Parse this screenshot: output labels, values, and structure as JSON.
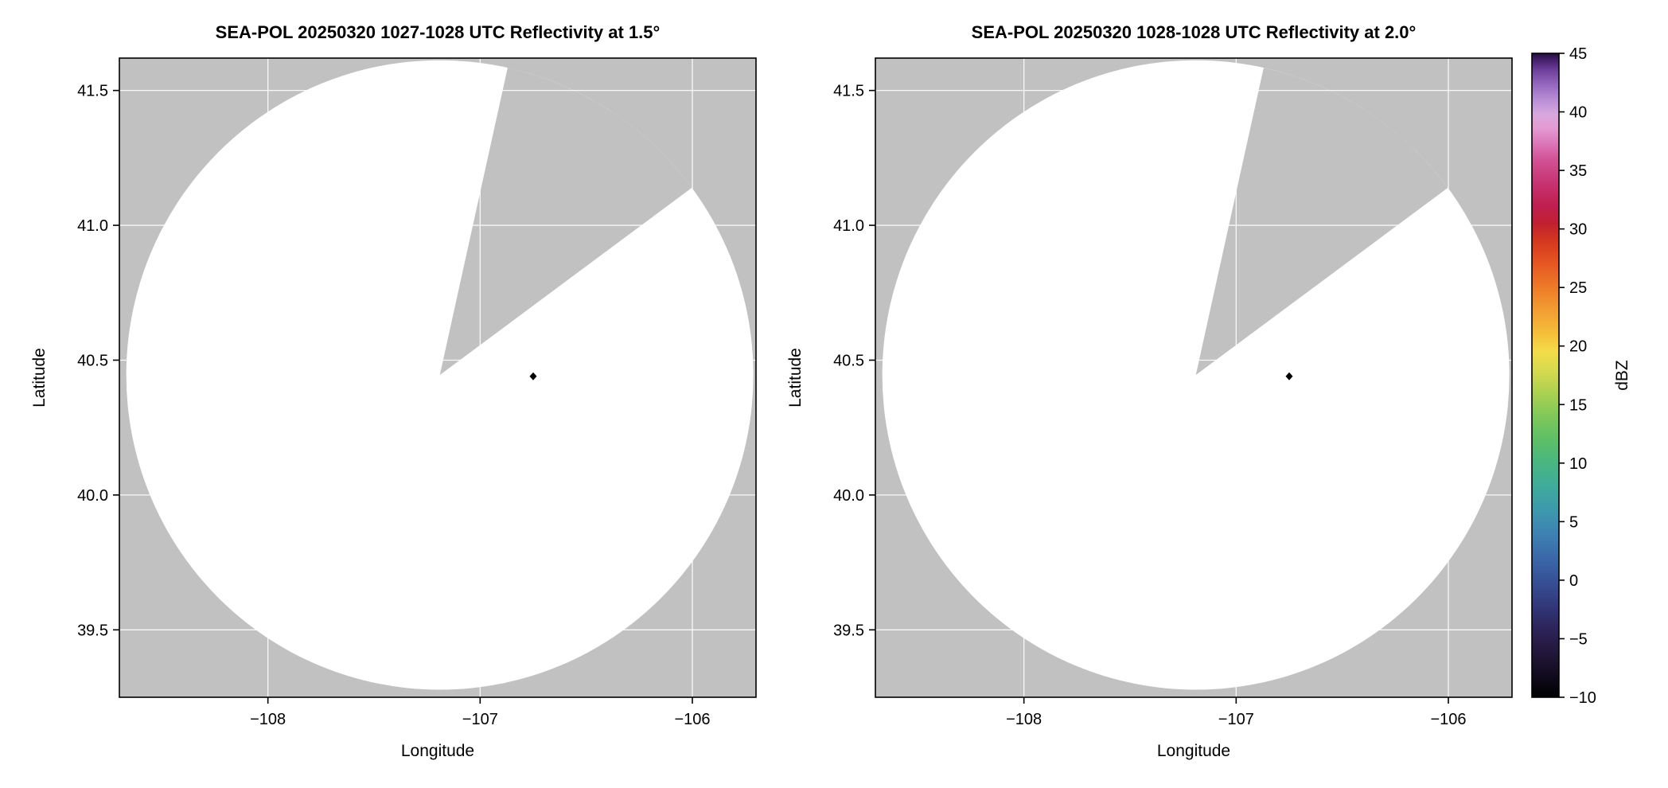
{
  "style": {
    "background": "#ffffff",
    "panel_bg": "#c1c1c1",
    "coverage_fill": "#ffffff",
    "grid_color": "#ffffff",
    "frame_color": "#000000",
    "text_color": "#000000",
    "echo_color": "#000000"
  },
  "chart_data": [
    {
      "type": "heatmap",
      "title": "SEA-POL 20250320 1027-1028 UTC Reflectivity at 1.5°",
      "xlabel": "Longitude",
      "ylabel": "Latitude",
      "xlim": [
        -108.7,
        -105.7
      ],
      "ylim": [
        39.25,
        41.62
      ],
      "xticks": [
        -108,
        -107,
        -106
      ],
      "xtick_labels": [
        "−108",
        "−107",
        "−106"
      ],
      "yticks": [
        39.5,
        40.0,
        40.5,
        41.0,
        41.5
      ],
      "ytick_labels": [
        "39.5",
        "40.0",
        "40.5",
        "41.0",
        "41.5"
      ],
      "grid": true,
      "radar": {
        "center_lon": -107.19,
        "center_lat": 40.445,
        "range_lon_deg": 1.4775,
        "range_lat_deg": 1.167
      },
      "missing_sector_azimuth_deg": [
        12.5,
        53.5
      ],
      "echoes": [
        {
          "lon": -106.75,
          "lat": 40.44,
          "approx_dbz": -10
        }
      ]
    },
    {
      "type": "heatmap",
      "title": "SEA-POL 20250320 1028-1028 UTC Reflectivity at 2.0°",
      "xlabel": "Longitude",
      "ylabel": "Latitude",
      "xlim": [
        -108.7,
        -105.7
      ],
      "ylim": [
        39.25,
        41.62
      ],
      "xticks": [
        -108,
        -107,
        -106
      ],
      "xtick_labels": [
        "−108",
        "−107",
        "−106"
      ],
      "yticks": [
        39.5,
        40.0,
        40.5,
        41.0,
        41.5
      ],
      "ytick_labels": [
        "39.5",
        "40.0",
        "40.5",
        "41.0",
        "41.5"
      ],
      "grid": true,
      "radar": {
        "center_lon": -107.19,
        "center_lat": 40.445,
        "range_lon_deg": 1.4775,
        "range_lat_deg": 1.167
      },
      "missing_sector_azimuth_deg": [
        12.5,
        53.5
      ],
      "echoes": [
        {
          "lon": -106.75,
          "lat": 40.44,
          "approx_dbz": -10
        }
      ]
    }
  ],
  "colorbar": {
    "label": "dBZ",
    "min": -10,
    "max": 45,
    "tick_values": [
      -10,
      -5,
      0,
      5,
      10,
      15,
      20,
      25,
      30,
      35,
      40,
      45
    ],
    "tick_labels": [
      "−10",
      "−5",
      "0",
      "5",
      "10",
      "15",
      "20",
      "25",
      "30",
      "35",
      "40",
      "45"
    ],
    "stops": [
      [
        -10,
        "#000000"
      ],
      [
        -8.5,
        "#0e0918"
      ],
      [
        -7,
        "#1c122f"
      ],
      [
        -5.5,
        "#271a45"
      ],
      [
        -4,
        "#2d255c"
      ],
      [
        -2,
        "#323a7d"
      ],
      [
        0,
        "#375197"
      ],
      [
        2,
        "#3b69aa"
      ],
      [
        4,
        "#3d82b1"
      ],
      [
        6,
        "#3d99ad"
      ],
      [
        8,
        "#3fab9b"
      ],
      [
        10,
        "#49b681"
      ],
      [
        12,
        "#5dbf66"
      ],
      [
        14,
        "#7fc85a"
      ],
      [
        16,
        "#abd151"
      ],
      [
        18,
        "#d8da4e"
      ],
      [
        19.5,
        "#f2dc49"
      ],
      [
        21,
        "#f5c03b"
      ],
      [
        23,
        "#f29e32"
      ],
      [
        25,
        "#ee7b29"
      ],
      [
        27,
        "#e65722"
      ],
      [
        29,
        "#d4371e"
      ],
      [
        30.5,
        "#c02030"
      ],
      [
        32,
        "#bf1f50"
      ],
      [
        34,
        "#c73472"
      ],
      [
        36,
        "#d25497"
      ],
      [
        37.5,
        "#dd7cbd"
      ],
      [
        38.7,
        "#e39cd3"
      ],
      [
        39.8,
        "#d8a8de"
      ],
      [
        41,
        "#b98fd6"
      ],
      [
        42.3,
        "#9768bf"
      ],
      [
        43.5,
        "#70429e"
      ],
      [
        44.3,
        "#4c2472"
      ],
      [
        45,
        "#260e41"
      ]
    ]
  }
}
